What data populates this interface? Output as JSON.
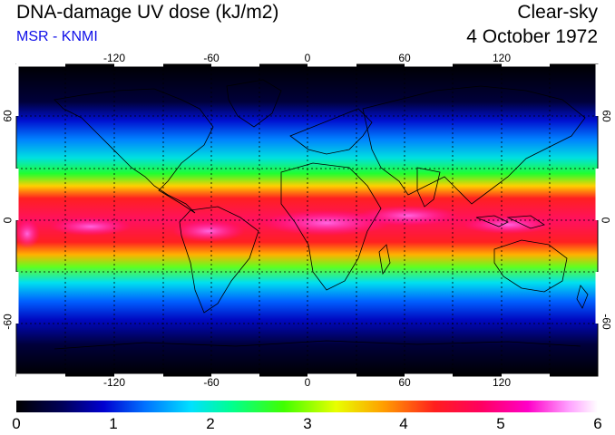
{
  "header": {
    "title": "DNA-damage UV dose (kJ/m2)",
    "subtitle": "MSR - KNMI",
    "condition": "Clear-sky",
    "date": "4 October 1972"
  },
  "map": {
    "projection": "equirectangular",
    "lon_range": [
      -180,
      180
    ],
    "lat_range": [
      -90,
      90
    ],
    "lon_ticks": [
      "-120",
      "-60",
      "0",
      "60",
      "120"
    ],
    "lat_ticks_left": [
      "60",
      "0",
      "-60"
    ],
    "lat_ticks_right": [
      "60",
      "0",
      "-60"
    ],
    "grid_spacing_deg": 30,
    "max_dose_latitude": 0,
    "peak_dose": 5.9
  },
  "colorbar": {
    "min": 0,
    "max": 6,
    "labels": [
      "0",
      "1",
      "2",
      "3",
      "4",
      "5",
      "6"
    ]
  },
  "colors": {
    "scale": [
      "#000000",
      "#00005a",
      "#0000c8",
      "#0064ff",
      "#00dcff",
      "#00ff96",
      "#32ff00",
      "#e6ff00",
      "#ffa500",
      "#ff2020",
      "#ff0050",
      "#ff00c8",
      "#ff96ff",
      "#ffffff"
    ]
  }
}
